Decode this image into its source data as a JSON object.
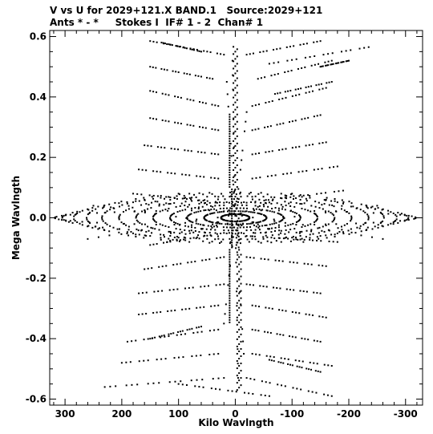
{
  "header": {
    "line1": "V vs U for 2029+121.X BAND.1   Source:2029+121",
    "line2": "Ants * - *     Stokes I  IF# 1 - 2  Chan# 1"
  },
  "chart_data": {
    "type": "scatter",
    "title": "V vs U for 2029+121.X BAND.1   Source:2029+121",
    "subtitle": "Ants * - *     Stokes I  IF# 1 - 2  Chan# 1",
    "xlabel": "Kilo Wavlngth",
    "ylabel": "Mega Wavlngth",
    "x_units": "kilo wavelength",
    "y_units": "mega wavelength",
    "xlim": [
      327,
      -330
    ],
    "ylim": [
      -0.62,
      0.62
    ],
    "x_reversed": true,
    "x_ticks": [
      300,
      200,
      100,
      0,
      -100,
      -200,
      -300
    ],
    "x_tick_labels": [
      "300",
      "200",
      "100",
      "0",
      "-100",
      "-200",
      "-300"
    ],
    "y_ticks": [
      0.6,
      0.4,
      0.2,
      0.0,
      -0.2,
      -0.4,
      -0.6
    ],
    "y_tick_labels": [
      "0.6",
      "0.4",
      "0.2",
      "0.0",
      "-0.2",
      "-0.4",
      "-0.6"
    ],
    "grid": false,
    "marker_color": "#000000",
    "tracks": [
      {
        "x": [
          150,
          20
        ],
        "y": [
          0.585,
          0.54
        ]
      },
      {
        "x": [
          -20,
          -150
        ],
        "y": [
          0.54,
          0.585
        ]
      },
      {
        "x": [
          150,
          40
        ],
        "y": [
          0.5,
          0.46
        ]
      },
      {
        "x": [
          -40,
          -170
        ],
        "y": [
          0.46,
          0.52
        ]
      },
      {
        "x": [
          150,
          30
        ],
        "y": [
          0.42,
          0.37
        ]
      },
      {
        "x": [
          -30,
          -160
        ],
        "y": [
          0.37,
          0.43
        ]
      },
      {
        "x": [
          150,
          30
        ],
        "y": [
          0.33,
          0.29
        ]
      },
      {
        "x": [
          -30,
          -150
        ],
        "y": [
          0.29,
          0.34
        ]
      },
      {
        "x": [
          160,
          30
        ],
        "y": [
          0.24,
          0.21
        ]
      },
      {
        "x": [
          -30,
          -160
        ],
        "y": [
          0.21,
          0.25
        ]
      },
      {
        "x": [
          170,
          30
        ],
        "y": [
          0.16,
          0.13
        ]
      },
      {
        "x": [
          -30,
          -180
        ],
        "y": [
          0.13,
          0.17
        ]
      },
      {
        "x": [
          180,
          20
        ],
        "y": [
          0.08,
          0.05
        ]
      },
      {
        "x": [
          -20,
          -190
        ],
        "y": [
          0.05,
          0.09
        ]
      },
      {
        "x": [
          -60,
          -235
        ],
        "y": [
          0.51,
          0.565
        ]
      },
      {
        "x": [
          -70,
          -170
        ],
        "y": [
          0.41,
          0.45
        ]
      },
      {
        "x": [
          -150,
          -200
        ],
        "y": [
          0.5,
          0.52
        ]
      },
      {
        "x": [
          20,
          150
        ],
        "y": [
          -0.05,
          -0.09
        ]
      },
      {
        "x": [
          -20,
          -180
        ],
        "y": [
          -0.06,
          -0.08
        ]
      },
      {
        "x": [
          20,
          160
        ],
        "y": [
          -0.13,
          -0.17
        ]
      },
      {
        "x": [
          -20,
          -160
        ],
        "y": [
          -0.13,
          -0.16
        ]
      },
      {
        "x": [
          20,
          170
        ],
        "y": [
          -0.22,
          -0.25
        ]
      },
      {
        "x": [
          -20,
          -150
        ],
        "y": [
          -0.22,
          -0.25
        ]
      },
      {
        "x": [
          30,
          170
        ],
        "y": [
          -0.29,
          -0.32
        ]
      },
      {
        "x": [
          -30,
          -160
        ],
        "y": [
          -0.29,
          -0.33
        ]
      },
      {
        "x": [
          30,
          190
        ],
        "y": [
          -0.37,
          -0.41
        ]
      },
      {
        "x": [
          -30,
          -150
        ],
        "y": [
          -0.37,
          -0.41
        ]
      },
      {
        "x": [
          30,
          200
        ],
        "y": [
          -0.45,
          -0.48
        ]
      },
      {
        "x": [
          -30,
          -170
        ],
        "y": [
          -0.45,
          -0.49
        ]
      },
      {
        "x": [
          20,
          230
        ],
        "y": [
          -0.53,
          -0.56
        ]
      },
      {
        "x": [
          -20,
          -170
        ],
        "y": [
          -0.53,
          -0.59
        ]
      },
      {
        "x": [
          150,
          60
        ],
        "y": [
          -0.4,
          -0.36
        ]
      },
      {
        "x": [
          -60,
          -150
        ],
        "y": [
          -0.47,
          -0.51
        ]
      },
      {
        "x": [
          100,
          -60
        ],
        "y": [
          -0.55,
          -0.59
        ]
      },
      {
        "x": [
          130,
          60
        ],
        "y": [
          0.58,
          0.55
        ]
      },
      {
        "x": [
          250,
          -150
        ],
        "y": [
          0.04,
          -0.06
        ]
      },
      {
        "x": [
          160,
          -260
        ],
        "y": [
          0.06,
          -0.07
        ]
      },
      {
        "x": [
          100,
          -120
        ],
        "y": [
          0.08,
          -0.08
        ]
      },
      {
        "x": [
          -100,
          120
        ],
        "y": [
          0.08,
          -0.08
        ]
      },
      {
        "x": [
          -160,
          260
        ],
        "y": [
          0.06,
          -0.07
        ]
      },
      {
        "x": [
          -250,
          150
        ],
        "y": [
          0.04,
          -0.06
        ]
      },
      {
        "x": [
          5,
          -5
        ],
        "y": [
          0.52,
          -0.53
        ]
      },
      {
        "x": [
          15,
          -15
        ],
        "y": [
          0.45,
          -0.45
        ]
      },
      {
        "x": [
          -20,
          20
        ],
        "y": [
          0.35,
          -0.35
        ]
      }
    ],
    "rings": [
      {
        "rx": 25,
        "ry": 0.012
      },
      {
        "rx": 55,
        "ry": 0.022
      },
      {
        "rx": 85,
        "ry": 0.032
      },
      {
        "rx": 115,
        "ry": 0.042
      },
      {
        "rx": 145,
        "ry": 0.052
      },
      {
        "rx": 175,
        "ry": 0.062
      },
      {
        "rx": 205,
        "ry": 0.072
      },
      {
        "rx": 235,
        "ry": 0.08
      },
      {
        "rx": 262,
        "ry": 0.084
      },
      {
        "rx": 285,
        "ry": 0.07
      },
      {
        "rx": 305,
        "ry": 0.05
      },
      {
        "rx": 318,
        "ry": 0.025
      }
    ],
    "central_column": {
      "x": 0,
      "y_range": [
        -0.57,
        0.57
      ]
    }
  }
}
